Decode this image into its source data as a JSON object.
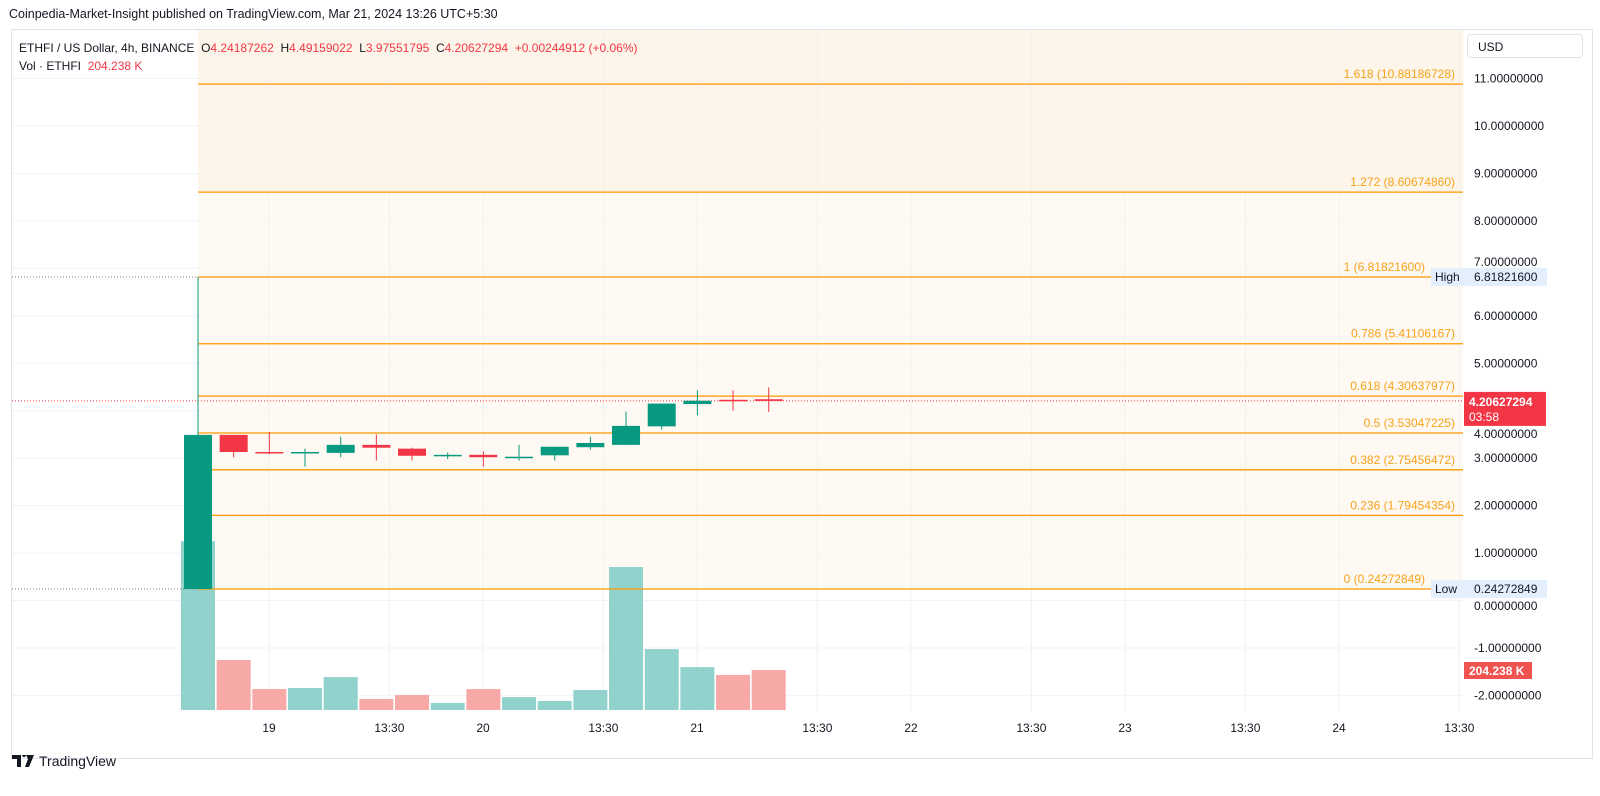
{
  "published": "Coinpedia-Market-Insight published on TradingView.com, Mar 21, 2024 13:26 UTC+5:30",
  "legend": {
    "symbol": "ETHFI / US Dollar, 4h, BINANCE",
    "o_label": "O",
    "o": "4.24187262",
    "h_label": "H",
    "h": "4.49159022",
    "l_label": "L",
    "l": "3.97551795",
    "c_label": "C",
    "c": "4.20627294",
    "change": "+0.00244912 (+0.06%)",
    "vol_label": "Vol · ETHFI",
    "vol": "204.238 K"
  },
  "currency_button": "USD",
  "brand": "TradingView",
  "colors": {
    "up": "#089981",
    "down": "#f23645",
    "vol_up": "#92d2cc",
    "vol_down": "#f7a9a7",
    "fib": "#ff9800",
    "fib_text": "#f7a21b"
  },
  "chart_data": {
    "type": "candlestick",
    "interval": "4h",
    "ylim": [
      -2.3,
      11.4
    ],
    "y_ticks": [
      "11.00000000",
      "10.00000000",
      "9.00000000",
      "8.00000000",
      "7.00000000",
      "6.00000000",
      "5.00000000",
      "4.00000000",
      "3.00000000",
      "2.00000000",
      "1.00000000",
      "0.00000000",
      "-1.00000000",
      "-2.00000000"
    ],
    "y_tick_values": [
      11,
      10,
      9,
      8,
      7,
      6,
      5,
      4,
      3,
      2,
      1,
      0,
      -1,
      -2
    ],
    "x_ticks": [
      "19",
      "13:30",
      "20",
      "13:30",
      "21",
      "13:30",
      "22",
      "13:30",
      "23",
      "13:30",
      "24",
      "13:30"
    ],
    "x_tick_times": [
      "03-19 00:00",
      "03-19 13:30",
      "03-20 00:00",
      "03-20 13:30",
      "03-21 00:00",
      "03-21 13:30",
      "03-22 00:00",
      "03-22 13:30",
      "03-23 00:00",
      "03-23 13:30",
      "03-24 00:00",
      "03-24 13:30"
    ],
    "candles": [
      {
        "t": "03-18 16:00",
        "o": 0.2427,
        "h": 6.8182,
        "l": 0.2427,
        "c": 3.49,
        "v": 862
      },
      {
        "t": "03-18 20:00",
        "o": 3.49,
        "h": 3.49,
        "l": 3.02,
        "c": 3.13,
        "v": 255
      },
      {
        "t": "03-19 00:00",
        "o": 3.13,
        "h": 3.55,
        "l": 3.08,
        "c": 3.11,
        "v": 107
      },
      {
        "t": "03-19 04:00",
        "o": 3.1,
        "h": 3.2,
        "l": 2.82,
        "c": 3.13,
        "v": 112
      },
      {
        "t": "03-19 08:00",
        "o": 3.11,
        "h": 3.45,
        "l": 3.02,
        "c": 3.28,
        "v": 168
      },
      {
        "t": "03-19 12:00",
        "o": 3.28,
        "h": 3.5,
        "l": 2.95,
        "c": 3.22,
        "v": 56
      },
      {
        "t": "03-19 16:00",
        "o": 3.2,
        "h": 3.22,
        "l": 2.95,
        "c": 3.05,
        "v": 77
      },
      {
        "t": "03-19 20:00",
        "o": 3.05,
        "h": 3.12,
        "l": 2.98,
        "c": 3.07,
        "v": 36
      },
      {
        "t": "03-20 00:00",
        "o": 3.07,
        "h": 3.14,
        "l": 2.82,
        "c": 3.02,
        "v": 107
      },
      {
        "t": "03-20 04:00",
        "o": 3.0,
        "h": 3.28,
        "l": 2.95,
        "c": 3.03,
        "v": 66
      },
      {
        "t": "03-20 08:00",
        "o": 3.06,
        "h": 3.24,
        "l": 2.95,
        "c": 3.24,
        "v": 46
      },
      {
        "t": "03-20 12:00",
        "o": 3.23,
        "h": 3.45,
        "l": 3.18,
        "c": 3.32,
        "v": 102
      },
      {
        "t": "03-20 16:00",
        "o": 3.28,
        "h": 3.98,
        "l": 3.28,
        "c": 3.68,
        "v": 730
      },
      {
        "t": "03-20 20:00",
        "o": 3.67,
        "h": 4.15,
        "l": 3.6,
        "c": 4.15,
        "v": 311
      },
      {
        "t": "03-21 00:00",
        "o": 4.14,
        "h": 4.43,
        "l": 3.9,
        "c": 4.21,
        "v": 219
      },
      {
        "t": "03-21 04:00",
        "o": 4.23,
        "h": 4.43,
        "l": 4.0,
        "c": 4.21,
        "v": 179
      },
      {
        "t": "03-21 08:00",
        "o": 4.2419,
        "h": 4.4916,
        "l": 3.9755,
        "c": 4.2063,
        "v": 204.238
      }
    ],
    "volume_unit": "K",
    "fib_levels": [
      {
        "label": "1.618 (10.88186728)",
        "value": 10.88186728
      },
      {
        "label": "1.272 (8.60674860)",
        "value": 8.6067486
      },
      {
        "label": "1 (6.81821600)",
        "value": 6.818216
      },
      {
        "label": "0.786 (5.41106167)",
        "value": 5.41106167
      },
      {
        "label": "0.618 (4.30637977)",
        "value": 4.30637977
      },
      {
        "label": "0.5 (3.53047225)",
        "value": 3.53047225
      },
      {
        "label": "0.382 (2.75456472)",
        "value": 2.75456472
      },
      {
        "label": "0.236 (1.79454354)",
        "value": 1.79454354
      },
      {
        "label": "0 (0.24272849)",
        "value": 0.24272849
      }
    ],
    "high_tag": {
      "label": "High",
      "value": "6.81821600"
    },
    "low_tag": {
      "label": "Low",
      "value": "0.24272849"
    },
    "last_price_tag": {
      "value": "4.20627294",
      "countdown": "03:58"
    },
    "volume_tag": "204.238 K",
    "grid": true
  }
}
